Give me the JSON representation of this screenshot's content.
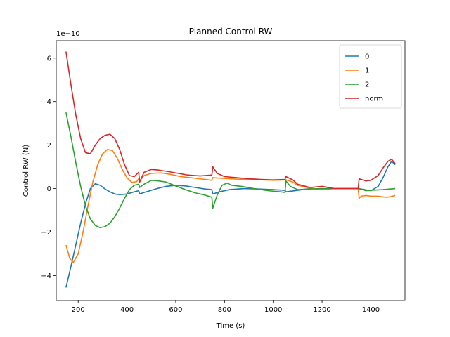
{
  "chart_data": {
    "type": "line",
    "title": "Planned Control RW",
    "xlabel": "Time (s)",
    "ylabel": "Control RW (N)",
    "y_scale_label": "1e−10",
    "xlim": [
      110,
      1540
    ],
    "ylim": [
      -5.15,
      6.8
    ],
    "x_ticks": [
      200,
      400,
      600,
      800,
      1000,
      1200,
      1400
    ],
    "y_ticks": [
      -4,
      -2,
      0,
      2,
      4,
      6
    ],
    "grid": false,
    "legend_position": "top-right",
    "series": [
      {
        "name": "0",
        "color": "#1f77b4",
        "points": [
          [
            150,
            -4.55
          ],
          [
            170,
            -3.6
          ],
          [
            190,
            -2.6
          ],
          [
            210,
            -1.6
          ],
          [
            230,
            -0.7
          ],
          [
            250,
            0.0
          ],
          [
            270,
            0.22
          ],
          [
            290,
            0.15
          ],
          [
            310,
            -0.02
          ],
          [
            330,
            -0.15
          ],
          [
            350,
            -0.25
          ],
          [
            370,
            -0.28
          ],
          [
            400,
            -0.25
          ],
          [
            430,
            -0.15
          ],
          [
            448,
            -0.1
          ],
          [
            452,
            -0.25
          ],
          [
            470,
            -0.18
          ],
          [
            500,
            -0.08
          ],
          [
            530,
            0.02
          ],
          [
            560,
            0.1
          ],
          [
            600,
            0.15
          ],
          [
            640,
            0.12
          ],
          [
            680,
            0.05
          ],
          [
            720,
            -0.02
          ],
          [
            748,
            -0.05
          ],
          [
            752,
            -0.25
          ],
          [
            780,
            -0.15
          ],
          [
            820,
            -0.05
          ],
          [
            880,
            0.0
          ],
          [
            940,
            -0.02
          ],
          [
            1000,
            -0.05
          ],
          [
            1048,
            -0.08
          ],
          [
            1052,
            -0.15
          ],
          [
            1100,
            -0.08
          ],
          [
            1150,
            0.0
          ],
          [
            1200,
            -0.02
          ],
          [
            1250,
            0.0
          ],
          [
            1300,
            0.0
          ],
          [
            1350,
            0.0
          ],
          [
            1400,
            -0.1
          ],
          [
            1430,
            0.1
          ],
          [
            1450,
            0.5
          ],
          [
            1470,
            1.0
          ],
          [
            1485,
            1.25
          ],
          [
            1500,
            1.1
          ]
        ]
      },
      {
        "name": "1",
        "color": "#ff7f0e",
        "points": [
          [
            150,
            -2.6
          ],
          [
            165,
            -3.2
          ],
          [
            180,
            -3.4
          ],
          [
            200,
            -3.0
          ],
          [
            220,
            -2.0
          ],
          [
            240,
            -0.8
          ],
          [
            260,
            0.3
          ],
          [
            280,
            1.1
          ],
          [
            300,
            1.6
          ],
          [
            320,
            1.8
          ],
          [
            340,
            1.75
          ],
          [
            360,
            1.4
          ],
          [
            380,
            0.9
          ],
          [
            400,
            0.5
          ],
          [
            420,
            0.28
          ],
          [
            440,
            0.32
          ],
          [
            448,
            0.45
          ],
          [
            452,
            0.35
          ],
          [
            470,
            0.6
          ],
          [
            500,
            0.7
          ],
          [
            540,
            0.72
          ],
          [
            580,
            0.65
          ],
          [
            620,
            0.55
          ],
          [
            660,
            0.5
          ],
          [
            700,
            0.45
          ],
          [
            748,
            0.38
          ],
          [
            752,
            0.5
          ],
          [
            780,
            0.48
          ],
          [
            820,
            0.45
          ],
          [
            880,
            0.42
          ],
          [
            950,
            0.4
          ],
          [
            1000,
            0.38
          ],
          [
            1048,
            0.4
          ],
          [
            1052,
            0.4
          ],
          [
            1080,
            0.3
          ],
          [
            1100,
            0.15
          ],
          [
            1150,
            0.02
          ],
          [
            1200,
            -0.05
          ],
          [
            1250,
            0.0
          ],
          [
            1300,
            0.0
          ],
          [
            1348,
            0.0
          ],
          [
            1352,
            -0.45
          ],
          [
            1360,
            -0.35
          ],
          [
            1380,
            -0.32
          ],
          [
            1400,
            -0.35
          ],
          [
            1430,
            -0.35
          ],
          [
            1460,
            -0.4
          ],
          [
            1480,
            -0.38
          ],
          [
            1500,
            -0.32
          ]
        ]
      },
      {
        "name": "2",
        "color": "#2ca02c",
        "points": [
          [
            150,
            3.5
          ],
          [
            170,
            2.4
          ],
          [
            190,
            1.2
          ],
          [
            210,
            0.1
          ],
          [
            230,
            -0.8
          ],
          [
            250,
            -1.4
          ],
          [
            270,
            -1.7
          ],
          [
            290,
            -1.8
          ],
          [
            310,
            -1.75
          ],
          [
            330,
            -1.6
          ],
          [
            350,
            -1.3
          ],
          [
            370,
            -0.9
          ],
          [
            390,
            -0.45
          ],
          [
            410,
            -0.05
          ],
          [
            430,
            0.15
          ],
          [
            448,
            0.2
          ],
          [
            452,
            0.05
          ],
          [
            470,
            0.2
          ],
          [
            500,
            0.38
          ],
          [
            530,
            0.35
          ],
          [
            560,
            0.3
          ],
          [
            600,
            0.12
          ],
          [
            640,
            -0.05
          ],
          [
            680,
            -0.2
          ],
          [
            720,
            -0.3
          ],
          [
            748,
            -0.4
          ],
          [
            752,
            -0.9
          ],
          [
            770,
            -0.3
          ],
          [
            790,
            0.15
          ],
          [
            810,
            0.25
          ],
          [
            830,
            0.15
          ],
          [
            870,
            0.1
          ],
          [
            920,
            0.0
          ],
          [
            980,
            -0.1
          ],
          [
            1030,
            -0.15
          ],
          [
            1048,
            -0.18
          ],
          [
            1052,
            0.35
          ],
          [
            1070,
            0.1
          ],
          [
            1100,
            -0.05
          ],
          [
            1150,
            -0.02
          ],
          [
            1200,
            0.0
          ],
          [
            1250,
            0.0
          ],
          [
            1300,
            0.0
          ],
          [
            1350,
            0.0
          ],
          [
            1380,
            -0.1
          ],
          [
            1400,
            -0.08
          ],
          [
            1450,
            -0.05
          ],
          [
            1500,
            0.0
          ]
        ]
      },
      {
        "name": "norm",
        "color": "#d62728",
        "points": [
          [
            150,
            6.3
          ],
          [
            170,
            4.8
          ],
          [
            190,
            3.4
          ],
          [
            210,
            2.3
          ],
          [
            230,
            1.65
          ],
          [
            250,
            1.6
          ],
          [
            270,
            2.0
          ],
          [
            290,
            2.3
          ],
          [
            310,
            2.45
          ],
          [
            330,
            2.5
          ],
          [
            350,
            2.3
          ],
          [
            370,
            1.8
          ],
          [
            390,
            1.1
          ],
          [
            410,
            0.6
          ],
          [
            430,
            0.55
          ],
          [
            448,
            0.75
          ],
          [
            452,
            0.3
          ],
          [
            470,
            0.75
          ],
          [
            500,
            0.88
          ],
          [
            530,
            0.85
          ],
          [
            570,
            0.78
          ],
          [
            610,
            0.7
          ],
          [
            650,
            0.62
          ],
          [
            700,
            0.58
          ],
          [
            748,
            0.62
          ],
          [
            752,
            1.0
          ],
          [
            770,
            0.7
          ],
          [
            800,
            0.55
          ],
          [
            850,
            0.5
          ],
          [
            900,
            0.45
          ],
          [
            950,
            0.42
          ],
          [
            1000,
            0.4
          ],
          [
            1048,
            0.42
          ],
          [
            1052,
            0.55
          ],
          [
            1080,
            0.4
          ],
          [
            1100,
            0.2
          ],
          [
            1150,
            0.05
          ],
          [
            1200,
            0.1
          ],
          [
            1250,
            0.0
          ],
          [
            1300,
            0.0
          ],
          [
            1348,
            0.0
          ],
          [
            1352,
            0.45
          ],
          [
            1380,
            0.35
          ],
          [
            1400,
            0.38
          ],
          [
            1430,
            0.6
          ],
          [
            1450,
            0.95
          ],
          [
            1470,
            1.25
          ],
          [
            1485,
            1.35
          ],
          [
            1500,
            1.15
          ]
        ]
      }
    ]
  }
}
